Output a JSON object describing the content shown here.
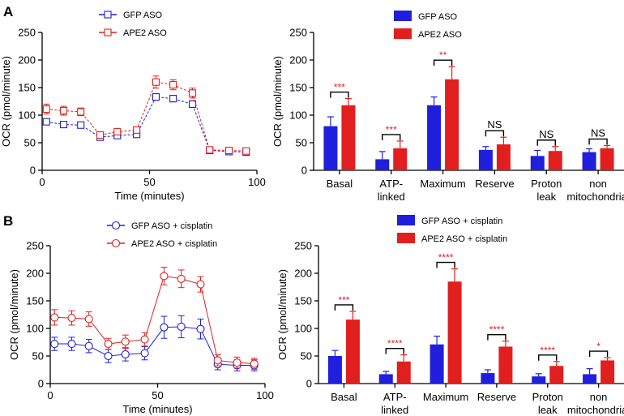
{
  "panels": {
    "a": {
      "label": "A"
    },
    "b": {
      "label": "B"
    }
  },
  "colors": {
    "gfp": "#1f1fdd",
    "ape2": "#e21f1f",
    "sig": "#e21f1f",
    "axis": "#000000"
  },
  "chart_data": [
    {
      "id": "A-line",
      "type": "line",
      "panel": "A",
      "xlabel": "Time (minutes)",
      "ylabel": "OCR (pmol/minute)",
      "xlim": [
        0,
        100
      ],
      "ylim": [
        0,
        250
      ],
      "xticks": [
        "0",
        "50",
        "100"
      ],
      "yticks": [
        "0",
        "50",
        "100",
        "150",
        "200",
        "250"
      ],
      "marker": "square",
      "legend_position": "top-center",
      "x": [
        2,
        10,
        18,
        27,
        35,
        44,
        53,
        61,
        70,
        78,
        87,
        95
      ],
      "series": [
        {
          "name": "GFP ASO",
          "color_key": "gfp",
          "values": [
            88,
            83,
            82,
            60,
            63,
            65,
            133,
            130,
            120,
            36,
            34,
            33
          ],
          "errors": [
            4,
            4,
            4,
            4,
            4,
            4,
            6,
            6,
            6,
            3,
            3,
            3
          ]
        },
        {
          "name": "APE2 ASO",
          "color_key": "ape2",
          "values": [
            111,
            108,
            106,
            64,
            70,
            73,
            160,
            155,
            140,
            37,
            36,
            35
          ],
          "errors": [
            9,
            8,
            7,
            5,
            5,
            5,
            11,
            9,
            9,
            3,
            3,
            3
          ]
        }
      ]
    },
    {
      "id": "A-bar",
      "type": "bar",
      "panel": "A",
      "ylabel": "OCR (pmol/minute)",
      "ylim": [
        0,
        250
      ],
      "yticks": [
        "0",
        "50",
        "100",
        "150",
        "200",
        "250"
      ],
      "legend_position": "top-center",
      "categories": [
        [
          "Basal"
        ],
        [
          "ATP-",
          "linked"
        ],
        [
          "Maximum"
        ],
        [
          "Reserve"
        ],
        [
          "Proton",
          "leak"
        ],
        [
          "non",
          "mitochondrial"
        ]
      ],
      "series": [
        {
          "name": "GFP ASO",
          "color_key": "gfp",
          "values": [
            80,
            20,
            118,
            37,
            26,
            33
          ],
          "errors": [
            17,
            14,
            15,
            6,
            10,
            6
          ]
        },
        {
          "name": "APE2 ASO",
          "color_key": "ape2",
          "values": [
            118,
            40,
            165,
            47,
            35,
            40
          ],
          "errors": [
            12,
            13,
            23,
            13,
            8,
            5
          ]
        }
      ],
      "significance": [
        "***",
        "***",
        "**",
        "NS",
        "NS",
        "NS"
      ]
    },
    {
      "id": "B-line",
      "type": "line",
      "panel": "B",
      "xlabel": "Time (minutes)",
      "ylabel": "OCR (pmol/minute)",
      "xlim": [
        0,
        100
      ],
      "ylim": [
        0,
        250
      ],
      "xticks": [
        "0",
        "50",
        "100"
      ],
      "yticks": [
        "0",
        "50",
        "100",
        "150",
        "200",
        "250"
      ],
      "marker": "circle",
      "legend_position": "top-center",
      "x": [
        2,
        10,
        18,
        27,
        35,
        44,
        53,
        61,
        70,
        78,
        87,
        95
      ],
      "series": [
        {
          "name": "GFP ASO + cisplatin",
          "color_key": "gfp",
          "values": [
            72,
            72,
            68,
            50,
            53,
            55,
            102,
            103,
            99,
            35,
            33,
            33
          ],
          "errors": [
            12,
            12,
            12,
            12,
            12,
            12,
            20,
            20,
            18,
            10,
            10,
            10
          ]
        },
        {
          "name": "APE2 ASO + cisplatin",
          "color_key": "ape2",
          "values": [
            120,
            119,
            117,
            72,
            76,
            80,
            195,
            190,
            180,
            42,
            38,
            36
          ],
          "errors": [
            14,
            13,
            13,
            10,
            12,
            12,
            16,
            16,
            14,
            10,
            10,
            10
          ]
        }
      ]
    },
    {
      "id": "B-bar",
      "type": "bar",
      "panel": "B",
      "ylabel": "OCR (pmol/minute)",
      "ylim": [
        0,
        250
      ],
      "yticks": [
        "0",
        "50",
        "100",
        "150",
        "200",
        "250"
      ],
      "legend_position": "top-center",
      "categories": [
        [
          "Basal"
        ],
        [
          "ATP-",
          "linked"
        ],
        [
          "Maximum"
        ],
        [
          "Reserve"
        ],
        [
          "Proton",
          "leak"
        ],
        [
          "non",
          "mitochondrial"
        ]
      ],
      "series": [
        {
          "name": "GFP ASO + cisplatin",
          "color_key": "gfp",
          "values": [
            50,
            17,
            71,
            19,
            13,
            17
          ],
          "errors": [
            10,
            5,
            15,
            6,
            5,
            10
          ]
        },
        {
          "name": "APE2 ASO + cisplatin",
          "color_key": "ape2",
          "values": [
            116,
            40,
            185,
            67,
            32,
            42
          ],
          "errors": [
            15,
            12,
            23,
            10,
            8,
            5
          ]
        }
      ],
      "significance": [
        "***",
        "****",
        "****",
        "****",
        "****",
        "*"
      ]
    }
  ]
}
